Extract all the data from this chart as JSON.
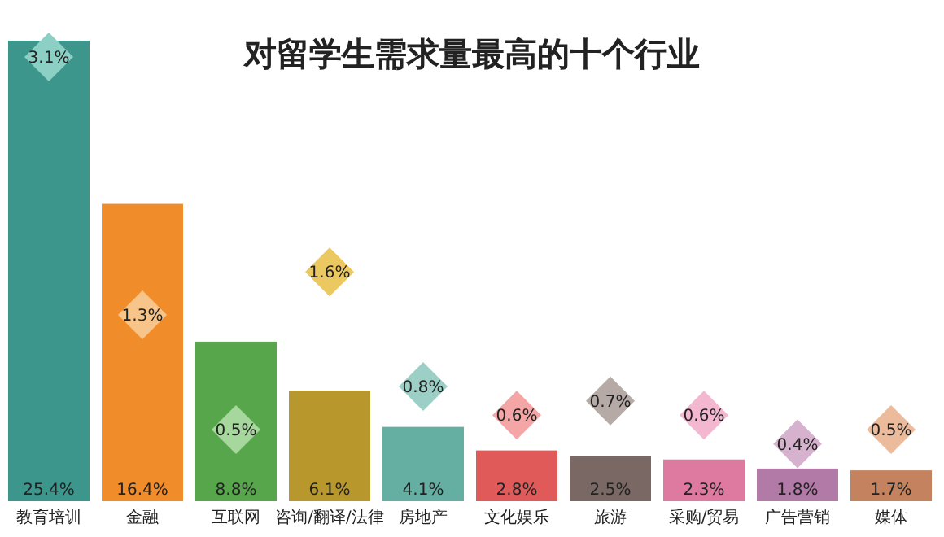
{
  "chart_data": {
    "type": "bar",
    "title": "对留学生需求量最高的十个行业",
    "categories": [
      "教育培训",
      "金融",
      "互联网",
      "咨询/翻译/法律",
      "房地产",
      "文化娱乐",
      "旅游",
      "采购/贸易",
      "广告营销",
      "媒体"
    ],
    "series": [
      {
        "values": [
          25.4,
          16.4,
          8.8,
          6.1,
          4.1,
          2.8,
          2.5,
          2.3,
          1.8,
          1.7
        ],
        "value_labels": [
          "25.4%",
          "16.4%",
          "8.8%",
          "6.1%",
          "4.1%",
          "2.8%",
          "2.5%",
          "2.3%",
          "1.8%",
          "1.7%"
        ],
        "colors": [
          "#3d968c",
          "#f08c2a",
          "#58a64c",
          "#b8982c",
          "#64aea2",
          "#e05a5a",
          "#7a6864",
          "#de79a0",
          "#b27aa6",
          "#c4825e"
        ]
      },
      {
        "type": "scatter",
        "axis": "y2",
        "marker": "diamond",
        "values": [
          3.1,
          1.3,
          0.5,
          1.6,
          0.8,
          0.6,
          0.7,
          0.6,
          0.4,
          0.5
        ],
        "value_labels": [
          "3.1%",
          "1.3%",
          "0.5%",
          "1.6%",
          "0.8%",
          "0.6%",
          "0.7%",
          "0.6%",
          "0.4%",
          "0.5%"
        ],
        "colors": [
          "#8ccfc4",
          "#f7c48a",
          "#a6d79c",
          "#ecc860",
          "#9ccfc5",
          "#f4a5a5",
          "#b5aaa6",
          "#f3b8cf",
          "#d6b2cf",
          "#ecbb9c"
        ]
      }
    ]
  }
}
